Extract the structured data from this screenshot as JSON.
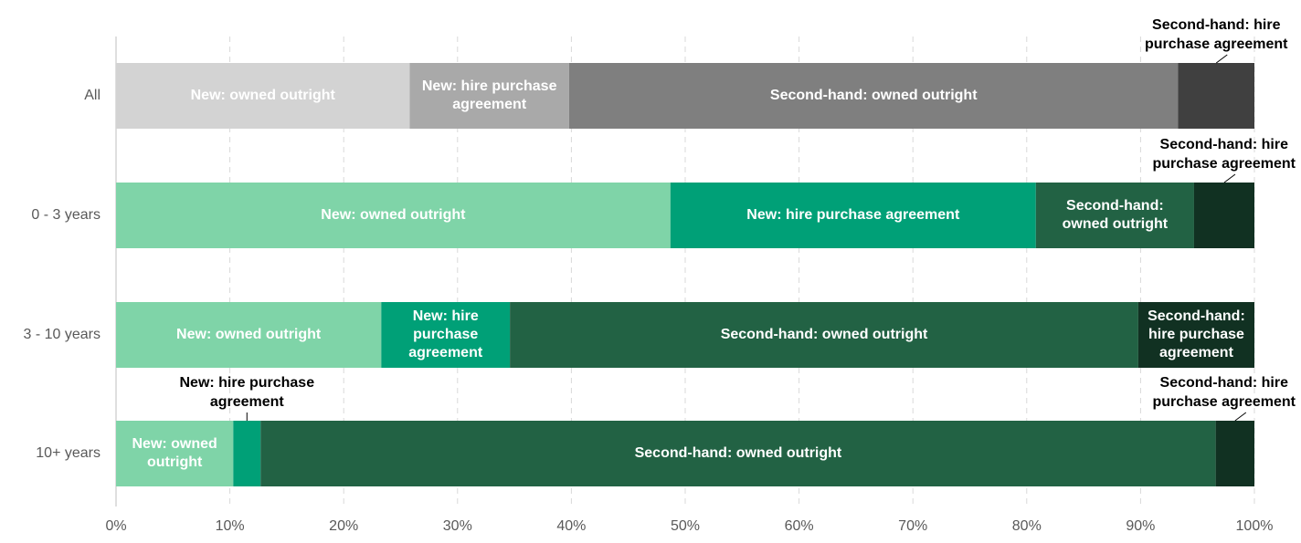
{
  "chart_data": {
    "type": "stacked_barh",
    "categories": [
      "All",
      "0 - 3 years",
      "3 - 10 years",
      "10+ years"
    ],
    "series": [
      {
        "name": "New: owned outright",
        "colors": [
          "#d3d3d3",
          "#7fd4a8",
          "#7fd4a8",
          "#7fd4a8"
        ],
        "values": [
          25.8,
          48.7,
          23.3,
          10.3
        ]
      },
      {
        "name": "New: hire purchase agreement",
        "colors": [
          "#a9a9a9",
          "#00a077",
          "#00a077",
          "#00a077"
        ],
        "values": [
          14.0,
          32.1,
          11.3,
          2.4
        ]
      },
      {
        "name": "Second-hand: owned outright",
        "colors": [
          "#7f7f7f",
          "#226244",
          "#226244",
          "#226244"
        ],
        "values": [
          53.5,
          13.9,
          55.2,
          83.9
        ]
      },
      {
        "name": "Second-hand: hire purchase agreement",
        "colors": [
          "#404040",
          "#113122",
          "#113122",
          "#113122"
        ],
        "values": [
          6.7,
          5.3,
          10.2,
          3.4
        ]
      }
    ],
    "xlim": [
      0,
      100
    ],
    "xticks": [
      {
        "value": 0,
        "label": "0%"
      },
      {
        "value": 10,
        "label": "10%"
      },
      {
        "value": 20,
        "label": "20%"
      },
      {
        "value": 30,
        "label": "30%"
      },
      {
        "value": 40,
        "label": "40%"
      },
      {
        "value": 50,
        "label": "50%"
      },
      {
        "value": 60,
        "label": "60%"
      },
      {
        "value": 70,
        "label": "70%"
      },
      {
        "value": 80,
        "label": "80%"
      },
      {
        "value": 90,
        "label": "90%"
      },
      {
        "value": 100,
        "label": "100%"
      }
    ],
    "grid": true
  }
}
